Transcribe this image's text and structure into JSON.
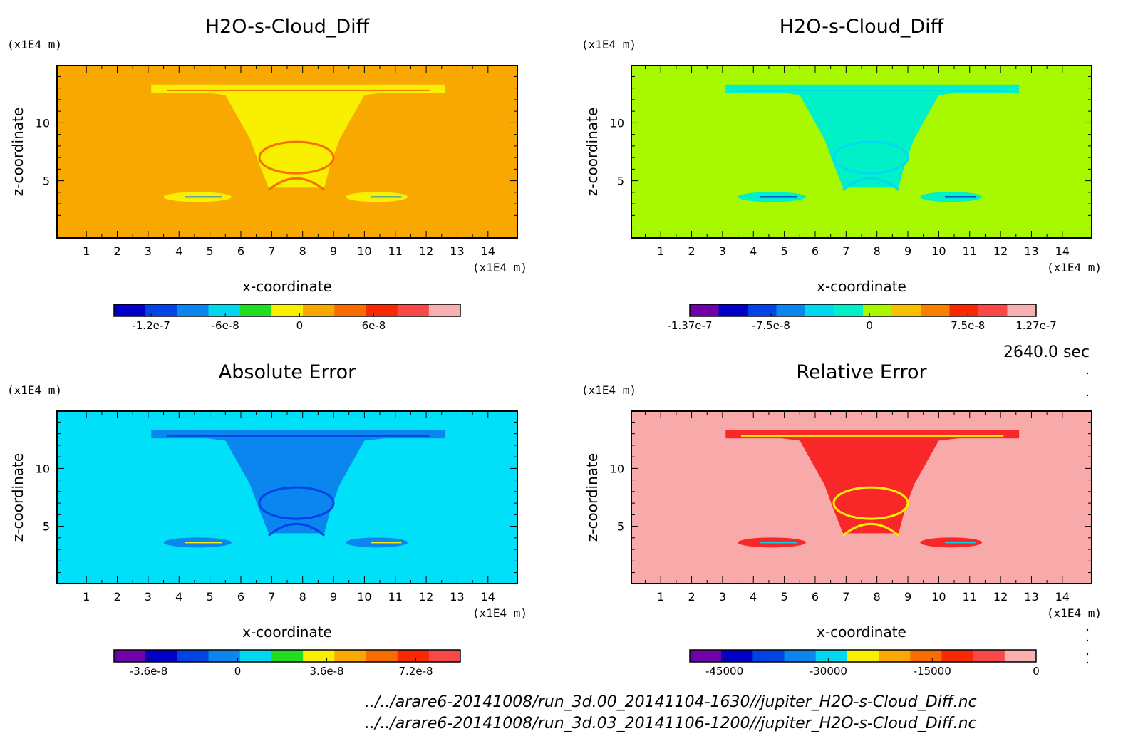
{
  "chart_data": [
    {
      "type": "heatmap",
      "title": "H2O-s-Cloud_Diff",
      "xlabel": "x-coordinate",
      "ylabel": "z-coordinate",
      "x_unit": "(x1E4 m)",
      "y_unit": "(x1E4 m)",
      "x_ticks": [
        1,
        2,
        3,
        4,
        5,
        6,
        7,
        8,
        9,
        10,
        11,
        12,
        13,
        14
      ],
      "y_ticks": [
        5,
        10
      ],
      "xlim": [
        0.05,
        14.95
      ],
      "ylim": [
        0.05,
        14.95
      ],
      "colorbar": {
        "colors": [
          "#0000c8",
          "#0044e8",
          "#0a86ee",
          "#00d8f0",
          "#22dd22",
          "#f8f000",
          "#f8a800",
          "#f86c00",
          "#f82800",
          "#f84848",
          "#f8b0b0"
        ],
        "tick_labels": [
          "-1.2e-7",
          "-6e-8",
          "0",
          "6e-8"
        ],
        "tick_values": [
          -1.2e-07,
          -6e-08,
          0,
          6e-08
        ],
        "range": [
          -1.5e-07,
          1.3e-07
        ]
      },
      "background_color": "#f8a800",
      "feature_colors": [
        "#f8f000",
        "#f86c00",
        "#22dd22",
        "#0a86ee"
      ]
    },
    {
      "type": "heatmap",
      "title": "H2O-s-Cloud_Diff",
      "xlabel": "x-coordinate",
      "ylabel": "z-coordinate",
      "x_unit": "(x1E4 m)",
      "y_unit": "(x1E4 m)",
      "x_ticks": [
        1,
        2,
        3,
        4,
        5,
        6,
        7,
        8,
        9,
        10,
        11,
        12,
        13,
        14
      ],
      "y_ticks": [
        5,
        10
      ],
      "xlim": [
        0.05,
        14.95
      ],
      "ylim": [
        0.05,
        14.95
      ],
      "colorbar": {
        "colors": [
          "#7000a8",
          "#0000c8",
          "#0044e8",
          "#0a86ee",
          "#00d8f0",
          "#00f0c8",
          "#a8f800",
          "#f8c000",
          "#f88000",
          "#f82800",
          "#f84848",
          "#f8b0b0"
        ],
        "tick_labels": [
          "-1.37e-7",
          "-7.5e-8",
          "0",
          "7.5e-8",
          "1.27e-7"
        ],
        "tick_values": [
          -1.37e-07,
          -7.5e-08,
          0,
          7.5e-08,
          1.27e-07
        ],
        "range": [
          -1.37e-07,
          1.27e-07
        ]
      },
      "background_color": "#a8f800",
      "feature_colors": [
        "#00f0c8",
        "#00d8f0",
        "#0a86ee",
        "#0000c8"
      ]
    },
    {
      "type": "heatmap",
      "title": "Absolute Error",
      "xlabel": "x-coordinate",
      "ylabel": "z-coordinate",
      "x_unit": "(x1E4 m)",
      "y_unit": "(x1E4 m)",
      "x_ticks": [
        1,
        2,
        3,
        4,
        5,
        6,
        7,
        8,
        9,
        10,
        11,
        12,
        13,
        14
      ],
      "y_ticks": [
        5,
        10
      ],
      "xlim": [
        0.05,
        14.95
      ],
      "ylim": [
        0.05,
        14.95
      ],
      "colorbar": {
        "colors": [
          "#7000a8",
          "#0000c8",
          "#0044e8",
          "#0a86ee",
          "#00d8f0",
          "#22dd22",
          "#f8f000",
          "#f8a800",
          "#f86c00",
          "#f82800",
          "#f84848"
        ],
        "tick_labels": [
          "-3.6e-8",
          "0",
          "3.6e-8",
          "7.2e-8"
        ],
        "tick_values": [
          -3.6e-08,
          0,
          3.6e-08,
          7.2e-08
        ],
        "range": [
          -5e-08,
          9e-08
        ]
      },
      "background_color": "#00e0f8",
      "feature_colors": [
        "#0a86ee",
        "#0044e8",
        "#f8f000"
      ]
    },
    {
      "type": "heatmap",
      "title": "Relative Error",
      "xlabel": "x-coordinate",
      "ylabel": "z-coordinate",
      "x_unit": "(x1E4 m)",
      "y_unit": "(x1E4 m)",
      "x_ticks": [
        1,
        2,
        3,
        4,
        5,
        6,
        7,
        8,
        9,
        10,
        11,
        12,
        13,
        14
      ],
      "y_ticks": [
        5,
        10
      ],
      "xlim": [
        0.05,
        14.95
      ],
      "ylim": [
        0.05,
        14.95
      ],
      "colorbar": {
        "colors": [
          "#7000a8",
          "#0000c8",
          "#0044e8",
          "#0a86ee",
          "#00d8f0",
          "#f8f000",
          "#f8a800",
          "#f86c00",
          "#f82800",
          "#f84848",
          "#f8b0b0"
        ],
        "tick_labels": [
          "-45000",
          "-30000",
          "-15000",
          "0"
        ],
        "tick_values": [
          -45000,
          -30000,
          -15000,
          0
        ],
        "range": [
          -50000,
          0
        ]
      },
      "background_color": "#f8aaaa",
      "feature_colors": [
        "#f82828",
        "#f8f000",
        "#00d8f0"
      ]
    }
  ],
  "timestamp": "2640.0 sec",
  "file_paths": [
    "../../arare6-20141008/run_3d.00_20141104-1630//jupiter_H2O-s-Cloud_Diff.nc",
    "../../arare6-20141008/run_3d.03_20141106-1200//jupiter_H2O-s-Cloud_Diff.nc"
  ]
}
